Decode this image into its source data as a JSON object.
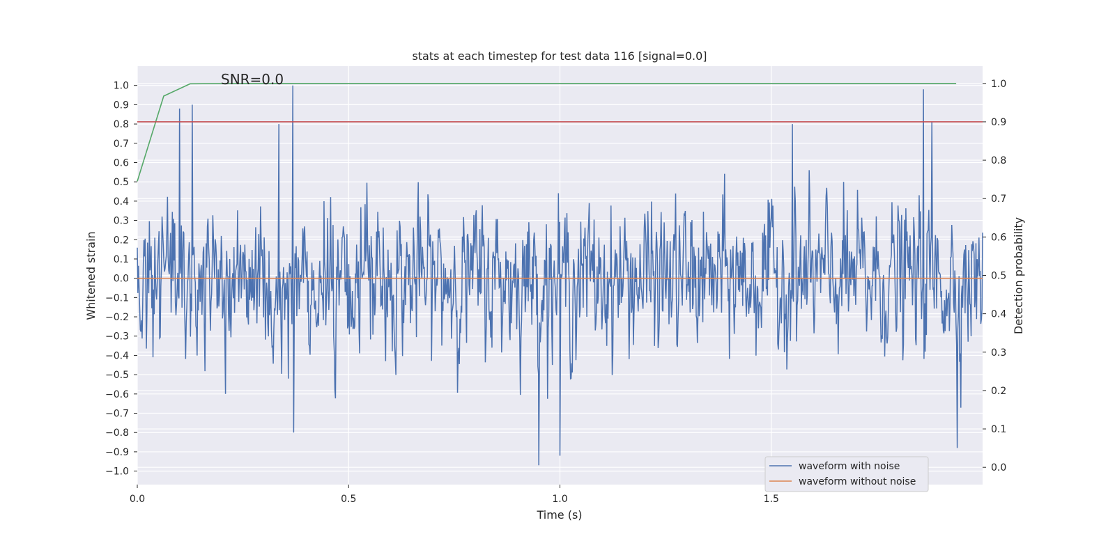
{
  "chart_data": {
    "type": "line",
    "title": "stats at each timestep for test data 116 [signal=0.0]",
    "xlabel": "Time (s)",
    "ylabel_left": "Whitened strain",
    "ylabel_right": "Detection probability",
    "xlim": [
      0.0,
      2.0
    ],
    "ylim_left": [
      -1.07,
      1.1
    ],
    "ylim_right": [
      -0.045,
      1.045
    ],
    "x_ticks": [
      0.0,
      0.5,
      1.0,
      1.5
    ],
    "x_tick_labels": [
      "0.0",
      "0.5",
      "1.0",
      "1.5"
    ],
    "y_left_ticks": [
      1.0,
      0.9,
      0.8,
      0.7,
      0.6,
      0.5,
      0.4,
      0.3,
      0.2,
      0.1,
      0.0,
      -0.1,
      -0.2,
      -0.3,
      -0.4,
      -0.5,
      -0.6,
      -0.7,
      -0.8,
      -0.9,
      -1.0
    ],
    "y_left_tick_labels": [
      "1.0",
      "0.9",
      "0.8",
      "0.7",
      "0.6",
      "0.5",
      "0.4",
      "0.3",
      "0.2",
      "0.1",
      "0.0",
      "−0.1",
      "−0.2",
      "−0.3",
      "−0.4",
      "−0.5",
      "−0.6",
      "−0.7",
      "−0.8",
      "−0.9",
      "−1.0"
    ],
    "y_right_ticks": [
      1.0,
      0.9,
      0.8,
      0.7,
      0.6,
      0.5,
      0.4,
      0.3,
      0.2,
      0.1,
      0.0
    ],
    "y_right_tick_labels": [
      "1.0",
      "0.9",
      "0.8",
      "0.7",
      "0.6",
      "0.5",
      "0.4",
      "0.3",
      "0.2",
      "0.1",
      "0.0"
    ],
    "annotation": "SNR=0.0",
    "grid": true,
    "legend_position": "bottom-right",
    "series": [
      {
        "name": "waveform with noise",
        "color": "#4c72b0",
        "axis": "left",
        "kind": "noise",
        "x_range": [
          0.0,
          2.0
        ],
        "n_points": 1400,
        "std": 0.3,
        "peaks": [
          {
            "x": 0.1,
            "y": 0.88
          },
          {
            "x": 0.13,
            "y": 0.9
          },
          {
            "x": 0.335,
            "y": 0.8
          },
          {
            "x": 0.368,
            "y": 1.0
          },
          {
            "x": 0.37,
            "y": -0.8
          },
          {
            "x": 0.95,
            "y": -0.97
          },
          {
            "x": 1.0,
            "y": -0.92
          },
          {
            "x": 1.55,
            "y": 0.8
          },
          {
            "x": 1.86,
            "y": 0.98
          },
          {
            "x": 1.88,
            "y": 0.81
          },
          {
            "x": 1.94,
            "y": -0.88
          }
        ]
      },
      {
        "name": "waveform without noise",
        "color": "#dd8452",
        "axis": "left",
        "kind": "line",
        "x": [
          0.0,
          2.0
        ],
        "y": [
          0.0,
          0.0
        ]
      },
      {
        "color": "#55a868",
        "axis": "right",
        "kind": "line",
        "x": [
          0.0,
          0.0625,
          0.125,
          0.25,
          0.5,
          1.0,
          1.5,
          1.9375
        ],
        "y": [
          0.745,
          0.967,
          0.999,
          1.0,
          1.0,
          1.0,
          1.0,
          1.0
        ]
      },
      {
        "color": "#c44e52",
        "axis": "right",
        "kind": "hline",
        "y": 0.9
      }
    ]
  }
}
